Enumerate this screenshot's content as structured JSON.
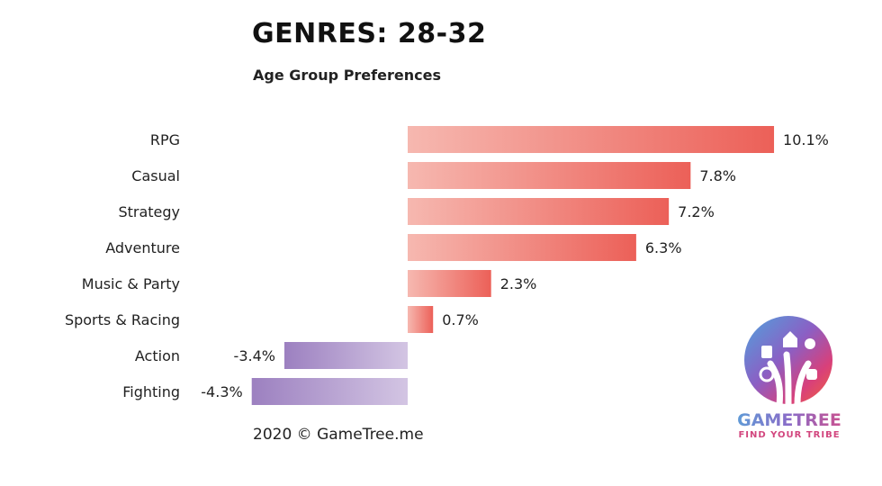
{
  "header": {
    "title": "GENRES: 28-32",
    "subtitle": "Age Group Preferences"
  },
  "chart_data": {
    "type": "bar",
    "orientation": "horizontal",
    "categories": [
      "RPG",
      "Casual",
      "Strategy",
      "Adventure",
      "Music & Party",
      "Sports & Racing",
      "Action",
      "Fighting"
    ],
    "values": [
      10.1,
      7.8,
      7.2,
      6.3,
      2.3,
      0.7,
      -3.4,
      -4.3
    ],
    "value_labels": [
      "10.1%",
      "7.8%",
      "7.2%",
      "6.3%",
      "2.3%",
      "0.7%",
      "-3.4%",
      "-4.3%"
    ],
    "unit": "%",
    "xlim": [
      -4.3,
      10.1
    ],
    "grid": false,
    "colors": {
      "positive_light": "#f6b8b0",
      "positive_dark": "#ec6058",
      "negative_dark": "#9c80c0",
      "negative_light": "#d3c5e3"
    }
  },
  "footer": {
    "credit": "2020 © GameTree.me"
  },
  "logo": {
    "brand": "GAMETREE",
    "tagline": "FIND YOUR TRIBE"
  }
}
